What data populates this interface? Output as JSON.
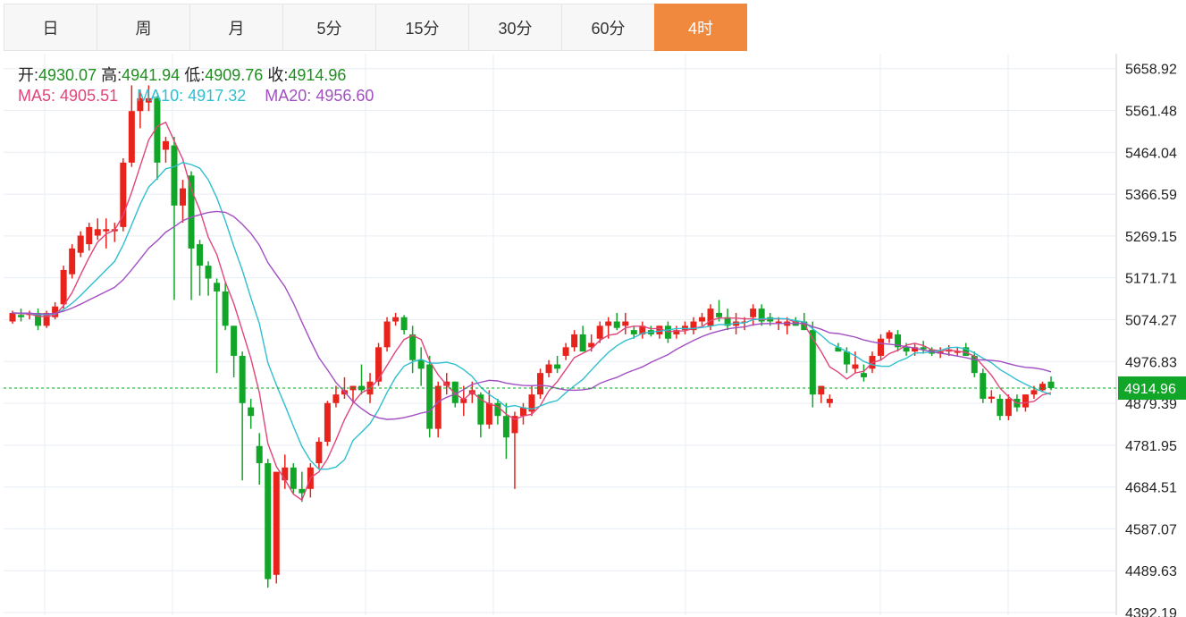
{
  "tabs": [
    {
      "label": "日",
      "active": false
    },
    {
      "label": "周",
      "active": false
    },
    {
      "label": "月",
      "active": false
    },
    {
      "label": "5分",
      "active": false
    },
    {
      "label": "15分",
      "active": false
    },
    {
      "label": "30分",
      "active": false
    },
    {
      "label": "60分",
      "active": false
    },
    {
      "label": "4时",
      "active": true
    }
  ],
  "ohlc": {
    "open_label": "开:",
    "open": "4930.07",
    "high_label": "高:",
    "high": "4941.94",
    "low_label": "低:",
    "low": "4909.76",
    "close_label": "收:",
    "close": "4914.96"
  },
  "ma": {
    "ma5_label": "MA5:",
    "ma5": "4905.51",
    "ma10_label": "MA10:",
    "ma10": "4917.32",
    "ma20_label": "MA20:",
    "ma20": "4956.60"
  },
  "colors": {
    "up": "#e8231b",
    "down": "#11a628",
    "ma5": "#e0457b",
    "ma10": "#2fbfcf",
    "ma20": "#a24fc2",
    "active_tab": "#f0883e",
    "last_price": "#11a628"
  },
  "chart_data": {
    "type": "candlestick",
    "ylim": [
      4392.19,
      5700
    ],
    "y_ticks": [
      "5658.92",
      "5561.48",
      "5464.04",
      "5366.59",
      "5269.15",
      "5171.71",
      "5074.27",
      "4976.83",
      "4879.39",
      "4781.95",
      "4684.51",
      "4587.07",
      "4489.63",
      "4392.19"
    ],
    "last_price": "4914.96",
    "candles": [
      [
        5070,
        5095,
        5065,
        5090
      ],
      [
        5085,
        5100,
        5070,
        5080
      ],
      [
        5085,
        5095,
        5075,
        5090
      ],
      [
        5090,
        5100,
        5050,
        5060
      ],
      [
        5060,
        5095,
        5055,
        5090
      ],
      [
        5080,
        5115,
        5075,
        5105
      ],
      [
        5110,
        5200,
        5100,
        5190
      ],
      [
        5180,
        5250,
        5170,
        5240
      ],
      [
        5230,
        5280,
        5220,
        5270
      ],
      [
        5250,
        5300,
        5235,
        5290
      ],
      [
        5270,
        5310,
        5260,
        5285
      ],
      [
        5280,
        5310,
        5240,
        5285
      ],
      [
        5280,
        5300,
        5255,
        5285
      ],
      [
        5290,
        5450,
        5280,
        5440
      ],
      [
        5440,
        5620,
        5430,
        5560
      ],
      [
        5560,
        5610,
        5520,
        5590
      ],
      [
        5580,
        5620,
        5560,
        5590
      ],
      [
        5590,
        5595,
        5400,
        5440
      ],
      [
        5470,
        5500,
        5440,
        5490
      ],
      [
        5480,
        5500,
        5120,
        5340
      ],
      [
        5340,
        5400,
        5300,
        5380
      ],
      [
        5410,
        5420,
        5120,
        5240
      ],
      [
        5250,
        5260,
        5130,
        5200
      ],
      [
        5200,
        5210,
        5130,
        5170
      ],
      [
        5160,
        5170,
        4950,
        5140
      ],
      [
        5140,
        5160,
        5050,
        5060
      ],
      [
        5060,
        5060,
        4940,
        4990
      ],
      [
        4990,
        5000,
        4700,
        4880
      ],
      [
        4870,
        4890,
        4820,
        4850
      ],
      [
        4780,
        4810,
        4690,
        4740
      ],
      [
        4740,
        4750,
        4450,
        4470
      ],
      [
        4480,
        4720,
        4460,
        4720
      ],
      [
        4700,
        4760,
        4680,
        4730
      ],
      [
        4730,
        4740,
        4670,
        4680
      ],
      [
        4680,
        4720,
        4650,
        4670
      ],
      [
        4680,
        4740,
        4660,
        4730
      ],
      [
        4740,
        4800,
        4725,
        4790
      ],
      [
        4790,
        4885,
        4780,
        4880
      ],
      [
        4880,
        4920,
        4870,
        4900
      ],
      [
        4900,
        4940,
        4890,
        4910
      ],
      [
        4910,
        4920,
        4880,
        4920
      ],
      [
        4920,
        4970,
        4900,
        4910
      ],
      [
        4900,
        4950,
        4880,
        4930
      ],
      [
        4930,
        5020,
        4920,
        5010
      ],
      [
        5010,
        5080,
        5000,
        5070
      ],
      [
        5070,
        5090,
        5060,
        5080
      ],
      [
        5080,
        5085,
        5040,
        5050
      ],
      [
        5040,
        5060,
        4950,
        4980
      ],
      [
        4980,
        5010,
        4920,
        4960
      ],
      [
        4970,
        4990,
        4800,
        4820
      ],
      [
        4820,
        4930,
        4800,
        4920
      ],
      [
        4920,
        4950,
        4900,
        4930
      ],
      [
        4930,
        4930,
        4870,
        4880
      ],
      [
        4880,
        4920,
        4850,
        4890
      ],
      [
        4900,
        4930,
        4880,
        4910
      ],
      [
        4900,
        4905,
        4800,
        4830
      ],
      [
        4830,
        4910,
        4820,
        4880
      ],
      [
        4880,
        4890,
        4830,
        4850
      ],
      [
        4850,
        4880,
        4750,
        4800
      ],
      [
        4810,
        4860,
        4680,
        4850
      ],
      [
        4850,
        4880,
        4830,
        4870
      ],
      [
        4860,
        4920,
        4850,
        4900
      ],
      [
        4900,
        4960,
        4890,
        4950
      ],
      [
        4950,
        4980,
        4940,
        4970
      ],
      [
        4970,
        4990,
        4950,
        4960
      ],
      [
        4990,
        5020,
        4980,
        5010
      ],
      [
        5010,
        5050,
        5000,
        5040
      ],
      [
        5040,
        5060,
        5000,
        5000
      ],
      [
        5010,
        5040,
        5000,
        5020
      ],
      [
        5030,
        5070,
        5020,
        5060
      ],
      [
        5060,
        5080,
        5030,
        5070
      ],
      [
        5070,
        5090,
        5050,
        5055
      ],
      [
        5060,
        5090,
        5040,
        5070
      ],
      [
        5050,
        5060,
        5030,
        5040
      ],
      [
        5040,
        5070,
        5030,
        5060
      ],
      [
        5050,
        5060,
        5035,
        5040
      ],
      [
        5040,
        5060,
        5030,
        5060
      ],
      [
        5060,
        5070,
        5020,
        5030
      ],
      [
        5040,
        5060,
        5030,
        5050
      ],
      [
        5050,
        5070,
        5040,
        5060
      ],
      [
        5050,
        5080,
        5040,
        5070
      ],
      [
        5070,
        5090,
        5060,
        5080
      ],
      [
        5060,
        5110,
        5050,
        5100
      ],
      [
        5090,
        5120,
        5070,
        5080
      ],
      [
        5080,
        5100,
        5050,
        5060
      ],
      [
        5060,
        5090,
        5040,
        5070
      ],
      [
        5070,
        5080,
        5050,
        5070
      ],
      [
        5080,
        5110,
        5060,
        5100
      ],
      [
        5100,
        5110,
        5060,
        5070
      ],
      [
        5080,
        5090,
        5060,
        5070
      ],
      [
        5070,
        5080,
        5050,
        5070
      ],
      [
        5060,
        5080,
        5040,
        5070
      ],
      [
        5070,
        5080,
        5060,
        5060
      ],
      [
        5070,
        5090,
        5060,
        5050
      ],
      [
        5050,
        5070,
        4870,
        4900
      ],
      [
        4900,
        4920,
        4880,
        4920
      ],
      [
        4880,
        4900,
        4870,
        4890
      ],
      [
        5010,
        5020,
        5000,
        5000
      ],
      [
        5000,
        5010,
        4950,
        4970
      ],
      [
        4960,
        5000,
        4950,
        4970
      ],
      [
        4950,
        4970,
        4930,
        4940
      ],
      [
        4960,
        5000,
        4950,
        4990
      ],
      [
        4990,
        5040,
        4980,
        5030
      ],
      [
        5030,
        5050,
        5020,
        5045
      ],
      [
        5040,
        5050,
        5000,
        5010
      ],
      [
        5010,
        5020,
        4990,
        5000
      ],
      [
        5000,
        5020,
        4990,
        5010
      ],
      [
        5010,
        5025,
        4995,
        5005
      ],
      [
        5005,
        5010,
        4990,
        4995
      ],
      [
        4995,
        5010,
        4985,
        5000
      ],
      [
        5000,
        5015,
        4990,
        5005
      ],
      [
        5000,
        5010,
        4990,
        5000
      ],
      [
        5010,
        5020,
        4990,
        4990
      ],
      [
        4990,
        5000,
        4940,
        4950
      ],
      [
        4950,
        4960,
        4880,
        4890
      ],
      [
        4890,
        4910,
        4880,
        4895
      ],
      [
        4890,
        4900,
        4840,
        4850
      ],
      [
        4850,
        4900,
        4840,
        4890
      ],
      [
        4890,
        4900,
        4860,
        4870
      ],
      [
        4870,
        4900,
        4860,
        4900
      ],
      [
        4900,
        4920,
        4890,
        4910
      ],
      [
        4910,
        4930,
        4905,
        4925
      ],
      [
        4930,
        4942,
        4910,
        4915
      ]
    ]
  }
}
